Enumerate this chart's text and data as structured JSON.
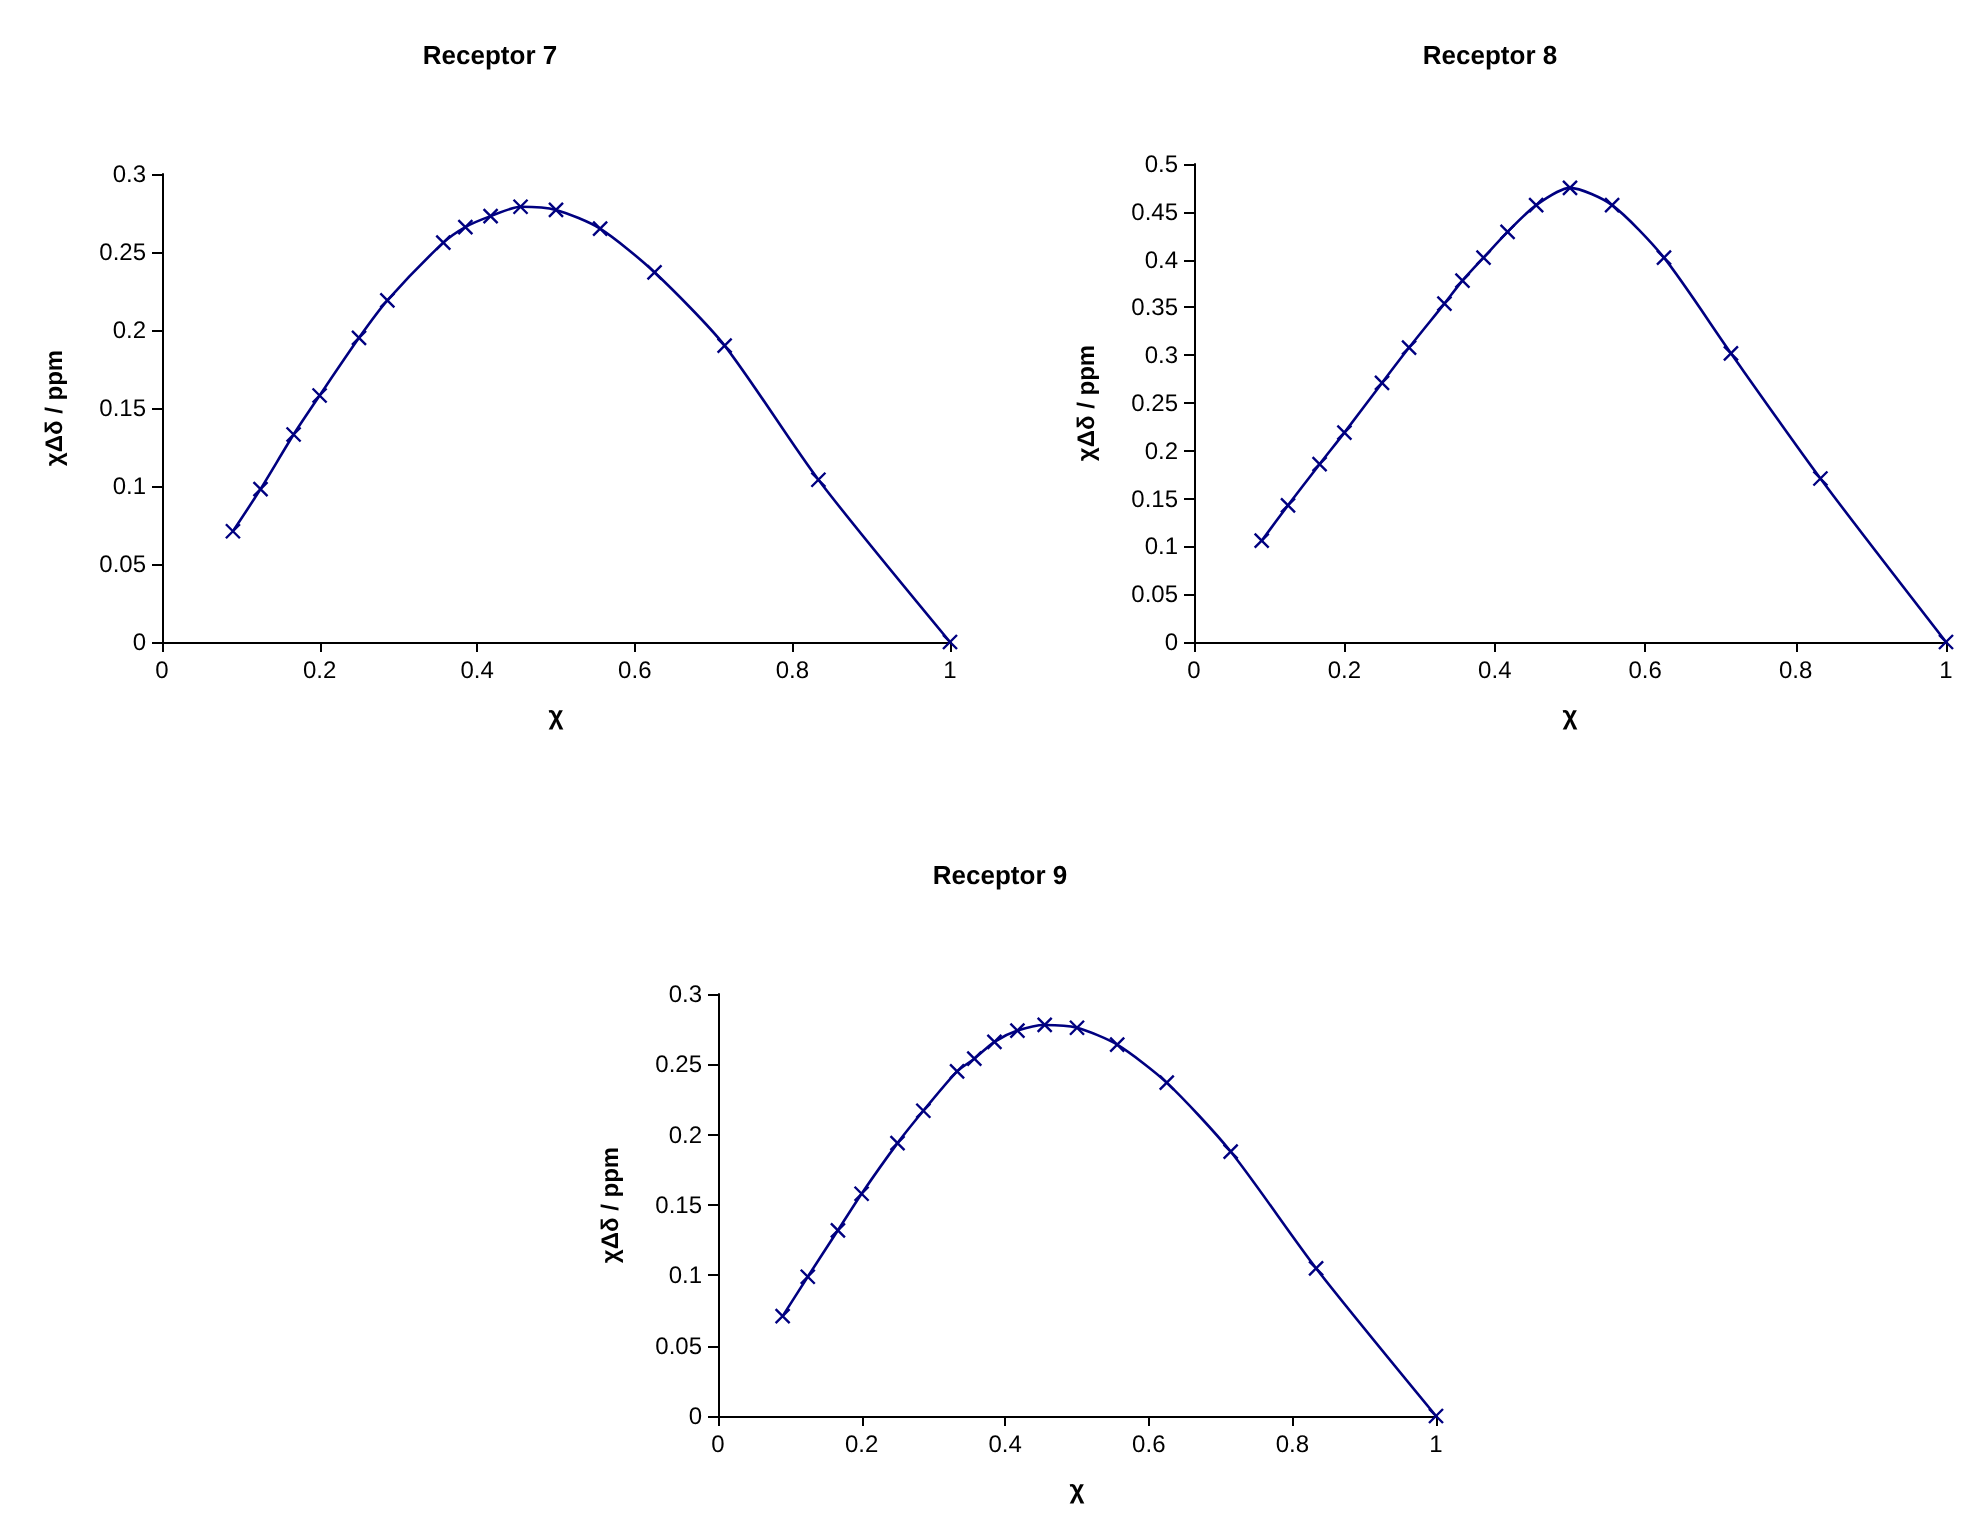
{
  "chart_data": [
    {
      "type": "line",
      "title": "Receptor 7",
      "xlabel": "χ",
      "ylabel": "χΔδ / ppm",
      "marker": "cross",
      "xlim": [
        0,
        1
      ],
      "xticks": [
        0,
        0.2,
        0.4,
        0.6,
        0.8,
        1
      ],
      "ylim": [
        0,
        0.3
      ],
      "yticks": [
        0,
        0.05,
        0.1,
        0.15,
        0.2,
        0.25,
        0.3
      ],
      "series": [
        {
          "color": "#000080",
          "x": [
            0.09,
            0.125,
            0.167,
            0.2,
            0.25,
            0.286,
            0.357,
            0.385,
            0.417,
            0.455,
            0.5,
            0.556,
            0.625,
            0.714,
            0.833,
            1
          ],
          "values": [
            0.071,
            0.098,
            0.133,
            0.158,
            0.195,
            0.219,
            0.256,
            0.266,
            0.273,
            0.279,
            0.277,
            0.265,
            0.237,
            0.19,
            0.104,
            0
          ]
        }
      ]
    },
    {
      "type": "line",
      "title": "Receptor 8",
      "xlabel": "χ",
      "ylabel": "χΔδ / ppm",
      "marker": "cross",
      "xlim": [
        0,
        1
      ],
      "xticks": [
        0,
        0.2,
        0.4,
        0.6,
        0.8,
        1
      ],
      "ylim": [
        0,
        0.5
      ],
      "yticks": [
        0,
        0.05,
        0.1,
        0.15,
        0.2,
        0.25,
        0.3,
        0.35,
        0.4,
        0.45,
        0.5
      ],
      "series": [
        {
          "color": "#000080",
          "x": [
            0.09,
            0.125,
            0.167,
            0.2,
            0.25,
            0.286,
            0.333,
            0.357,
            0.385,
            0.417,
            0.455,
            0.5,
            0.556,
            0.625,
            0.714,
            0.833,
            1
          ],
          "values": [
            0.106,
            0.143,
            0.186,
            0.219,
            0.271,
            0.308,
            0.354,
            0.378,
            0.402,
            0.429,
            0.457,
            0.475,
            0.457,
            0.402,
            0.302,
            0.171,
            0
          ]
        }
      ]
    },
    {
      "type": "line",
      "title": "Receptor 9",
      "xlabel": "χ",
      "ylabel": "χΔδ / ppm",
      "marker": "cross",
      "xlim": [
        0,
        1
      ],
      "xticks": [
        0,
        0.2,
        0.4,
        0.6,
        0.8,
        1
      ],
      "ylim": [
        0,
        0.3
      ],
      "yticks": [
        0,
        0.05,
        0.1,
        0.15,
        0.2,
        0.25,
        0.3
      ],
      "series": [
        {
          "color": "#000080",
          "x": [
            0.09,
            0.125,
            0.167,
            0.2,
            0.25,
            0.286,
            0.333,
            0.357,
            0.385,
            0.417,
            0.455,
            0.5,
            0.556,
            0.625,
            0.714,
            0.833,
            1
          ],
          "values": [
            0.071,
            0.099,
            0.132,
            0.158,
            0.194,
            0.217,
            0.245,
            0.254,
            0.266,
            0.274,
            0.278,
            0.276,
            0.264,
            0.237,
            0.188,
            0.105,
            0
          ]
        }
      ]
    }
  ]
}
